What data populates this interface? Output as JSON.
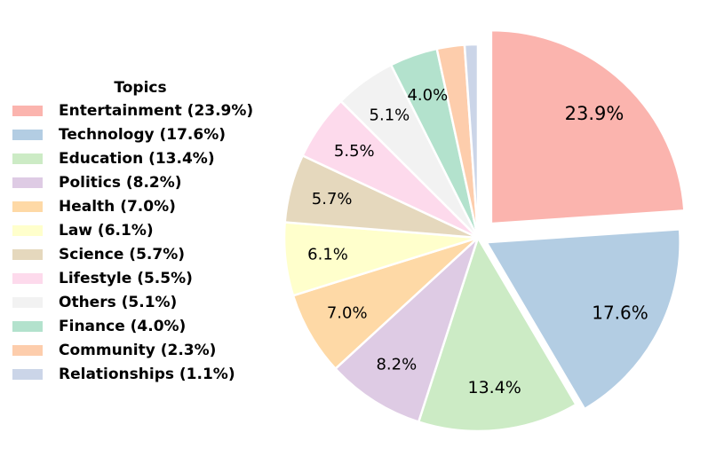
{
  "chart_data": {
    "type": "pie",
    "legend_title": "Topics",
    "legend_location": "left",
    "start_angle_deg": 90,
    "direction": "clockwise",
    "categories": [
      "Entertainment",
      "Technology",
      "Education",
      "Politics",
      "Health",
      "Law",
      "Science",
      "Lifestyle",
      "Others",
      "Finance",
      "Community",
      "Relationships"
    ],
    "values": [
      23.9,
      17.6,
      13.4,
      8.2,
      7.0,
      6.1,
      5.7,
      5.5,
      5.1,
      4.0,
      2.3,
      1.1
    ],
    "legend_labels": [
      "Entertainment (23.9%)",
      "Technology (17.6%)",
      "Education (13.4%)",
      "Politics (8.2%)",
      "Health (7.0%)",
      "Law (6.1%)",
      "Science (5.7%)",
      "Lifestyle (5.5%)",
      "Others (5.1%)",
      "Finance (4.0%)",
      "Community (2.3%)",
      "Relationships (1.1%)"
    ],
    "slice_labels": [
      "23.9%",
      "17.6%",
      "13.4%",
      "8.2%",
      "7.0%",
      "6.1%",
      "5.7%",
      "5.5%",
      "5.1%",
      "4.0%",
      "",
      ""
    ],
    "colors": [
      "#fbb4ae",
      "#b3cde3",
      "#ccebc5",
      "#decbe4",
      "#fed9a6",
      "#ffffcc",
      "#e5d8bd",
      "#fddaec",
      "#f2f2f2",
      "#b3e2cd",
      "#fdcdac",
      "#cbd5e8"
    ],
    "explode": [
      0.1,
      0.05,
      0,
      0,
      0,
      0,
      0,
      0,
      0,
      0,
      0,
      0
    ]
  }
}
